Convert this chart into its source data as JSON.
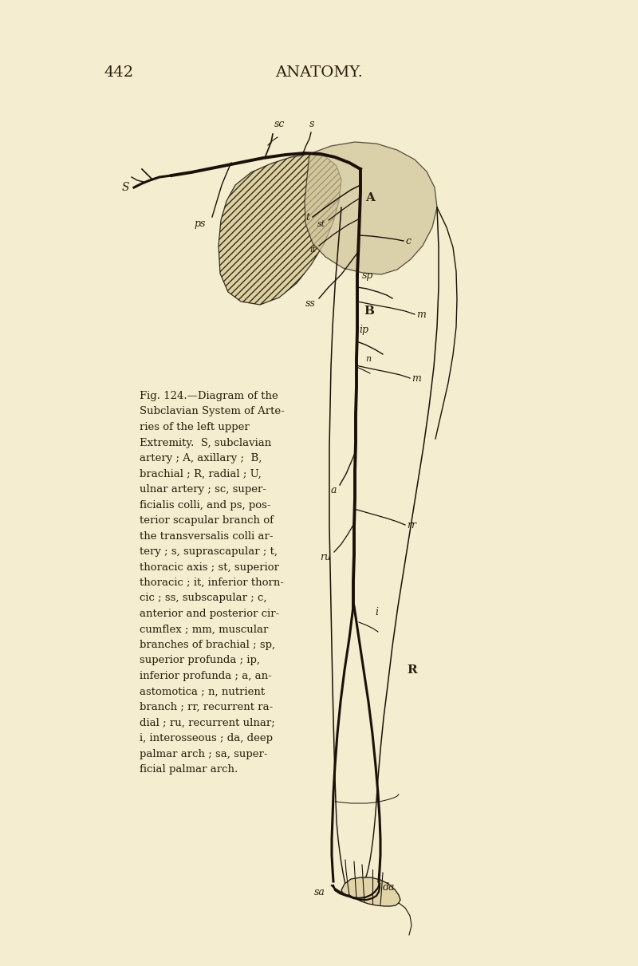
{
  "bg_color": "#f5edcf",
  "page_number": "442",
  "header": "ANATOMY.",
  "caption_lines": [
    "Fig. 124.—Diagram of the",
    "Subclavian System of Arte-",
    "ries of the left upper",
    "Extremity.  S, subclavian",
    "artery ; A, axillary ;  B,",
    "brachial ; R, radial ; U,",
    "ulnar artery ; sc, super-",
    "ficialis colli, and ps, pos-",
    "terior scapular branch of",
    "the transversalis colli ar-",
    "tery ; s, suprascapular ; t,",
    "thoracic axis ; st, superior",
    "thoracic ; it, inferior thorn-",
    "cic ; ss, subscapular ; c,",
    "anterior and posterior cir-",
    "cumflex ; mm, muscular",
    "branches of brachial ; sp,",
    "superior profunda ; ip,",
    "inferior profunda ; a, an-",
    "astomotica ; n, nutrient",
    "branch ; rr, recurrent ra-",
    "dial ; ru, recurrent ulnar;",
    "i, interosseous ; da, deep",
    "palmar arch ; sa, super-",
    "ficial palmar arch."
  ],
  "text_color": "#2a1f0e",
  "line_color": "#1a1008"
}
